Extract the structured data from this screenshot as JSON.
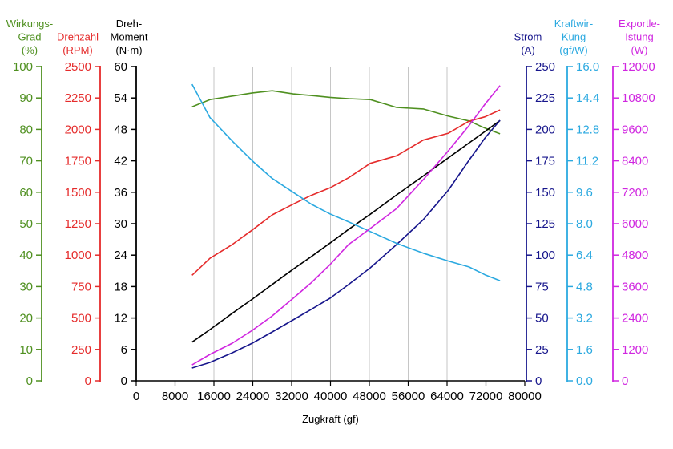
{
  "chart_data": {
    "type": "line",
    "xlabel": "Zugkraft (gf)",
    "grid": {
      "vertical": true,
      "horizontal": false
    },
    "x_axis": {
      "min": 0,
      "max": 80000,
      "ticks": [
        "0",
        "8000",
        "16000",
        "24000",
        "32000",
        "40000",
        "48000",
        "56000",
        "64000",
        "72000",
        "80000"
      ]
    },
    "x": [
      11500,
      15200,
      19800,
      23900,
      28000,
      32300,
      36000,
      39900,
      43700,
      48200,
      53600,
      59100,
      64300,
      68500,
      71800,
      74900
    ],
    "left_axes": [
      {
        "title_lines": [
          "Wirkungs-",
          "Grad",
          "(%)"
        ],
        "color": "#4f9020",
        "min": 0,
        "max": 100,
        "ticks": [
          "0",
          "10",
          "20",
          "30",
          "40",
          "50",
          "60",
          "70",
          "80",
          "90",
          "100"
        ],
        "values": [
          87.2,
          89.5,
          90.6,
          91.6,
          92.3,
          91.3,
          90.8,
          90.2,
          89.8,
          89.5,
          87.0,
          86.5,
          84.2,
          82.7,
          80.4,
          78.6
        ]
      },
      {
        "title_lines": [
          "Drehzahl",
          "(RPM)"
        ],
        "color": "#e52b2b",
        "min": 0,
        "max": 2500,
        "ticks": [
          "0",
          "250",
          "500",
          "750",
          "1000",
          "1250",
          "1500",
          "1750",
          "2000",
          "2250",
          "2500"
        ],
        "values": [
          840,
          975,
          1085,
          1200,
          1320,
          1405,
          1475,
          1535,
          1615,
          1730,
          1790,
          1915,
          1970,
          2065,
          2100,
          2155
        ]
      },
      {
        "title_lines": [
          "Dreh-",
          "Moment",
          "(N·m)"
        ],
        "color": "#000000",
        "min": 0,
        "max": 60,
        "ticks": [
          "0",
          "6",
          "12",
          "18",
          "24",
          "30",
          "36",
          "42",
          "48",
          "54",
          "60"
        ],
        "values": [
          7.4,
          9.8,
          12.9,
          15.6,
          18.4,
          21.3,
          23.7,
          26.3,
          28.9,
          31.8,
          35.5,
          39.1,
          42.6,
          45.4,
          47.6,
          49.7
        ]
      }
    ],
    "right_axes": [
      {
        "title_lines": [
          "Strom",
          "(A)"
        ],
        "color": "#17168c",
        "min": 0,
        "max": 250,
        "ticks": [
          "0",
          "25",
          "50",
          "75",
          "100",
          "125",
          "150",
          "175",
          "200",
          "225",
          "250"
        ],
        "values": [
          10.2,
          14.7,
          22.3,
          30.0,
          38.9,
          48.5,
          56.8,
          65.7,
          76.5,
          89.9,
          108.4,
          128.2,
          151.8,
          175.4,
          193.2,
          207.3
        ]
      },
      {
        "title_lines": [
          "Kraftwir-",
          "Kung",
          "(gf/W)"
        ],
        "color": "#2ba9e0",
        "min": 0,
        "max": 16,
        "ticks": [
          "0.0",
          "1.6",
          "3.2",
          "4.8",
          "6.4",
          "8.0",
          "9.6",
          "11.2",
          "12.8",
          "14.4",
          "16.0"
        ],
        "values": [
          15.1,
          13.4,
          12.2,
          11.2,
          10.3,
          9.6,
          9.0,
          8.5,
          8.1,
          7.6,
          7.0,
          6.5,
          6.1,
          5.8,
          5.4,
          5.1
        ]
      },
      {
        "title_lines": [
          "Exportle-",
          "Istung",
          "(W)"
        ],
        "color": "#d027e0",
        "min": 0,
        "max": 12000,
        "ticks": [
          "0",
          "1200",
          "2400",
          "3600",
          "4800",
          "6000",
          "7200",
          "8400",
          "9600",
          "10800",
          "12000"
        ],
        "values": [
          610,
          1010,
          1440,
          1930,
          2480,
          3150,
          3740,
          4440,
          5200,
          5820,
          6580,
          7680,
          8790,
          9740,
          10560,
          11270
        ]
      }
    ]
  }
}
